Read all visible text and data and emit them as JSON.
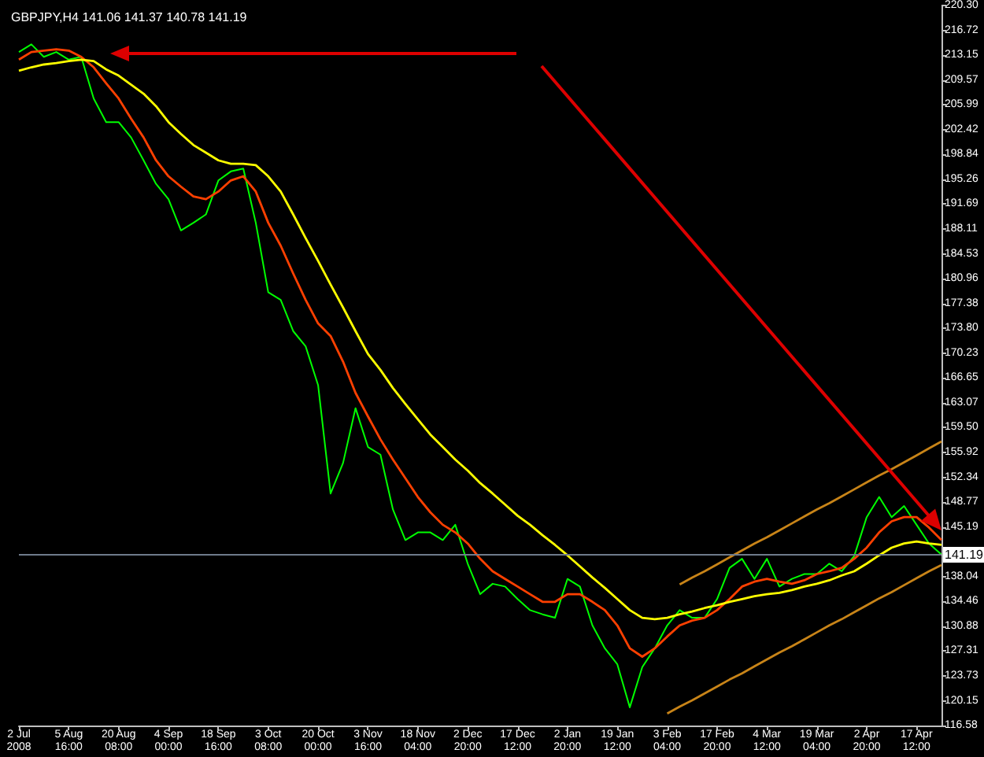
{
  "chart_data": {
    "type": "line",
    "title": "GBPJPY,H4 141.06 141.37 140.78 141.19",
    "categories": [
      "2 Jul 2008",
      null,
      null,
      null,
      "5 Aug 16:00",
      null,
      null,
      null,
      "20 Aug 08:00",
      null,
      null,
      null,
      "4 Sep 00:00",
      null,
      null,
      null,
      "18 Sep 16:00",
      null,
      null,
      null,
      "3 Oct 08:00",
      null,
      null,
      null,
      "20 Oct 00:00",
      null,
      null,
      null,
      "3 Nov 16:00",
      null,
      null,
      null,
      "18 Nov 04:00",
      null,
      null,
      null,
      "2 Dec 20:00",
      null,
      null,
      null,
      "17 Dec 12:00",
      null,
      null,
      null,
      "2 Jan 20:00",
      null,
      null,
      null,
      "19 Jan 12:00",
      null,
      null,
      null,
      "3 Feb 04:00",
      null,
      null,
      null,
      "17 Feb 20:00",
      null,
      null,
      null,
      "4 Mar 12:00",
      null,
      null,
      null,
      "19 Mar 04:00",
      null,
      null,
      null,
      "2 Apr 20:00",
      null,
      null,
      null,
      "17 Apr 12:00",
      null,
      null
    ],
    "series": [
      {
        "color": "#00ff00",
        "values": [
          213.6,
          214.7,
          212.9,
          213.6,
          212.5,
          212.9,
          206.9,
          203.5,
          203.5,
          201.3,
          198.0,
          194.6,
          192.4,
          187.9,
          189.0,
          190.2,
          195.1,
          196.4,
          196.8,
          189.0,
          179.0,
          177.9,
          173.4,
          171.2,
          165.6,
          150.0,
          154.4,
          162.3,
          156.7,
          155.6,
          147.7,
          143.3,
          144.4,
          144.4,
          143.3,
          145.5,
          139.9,
          135.5,
          137.0,
          136.6,
          134.8,
          133.2,
          132.6,
          132.1,
          137.7,
          136.6,
          131.0,
          127.7,
          125.4,
          119.2,
          125.0,
          127.7,
          131.0,
          133.2,
          132.1,
          132.1,
          134.8,
          139.3,
          140.6,
          137.7,
          140.6,
          136.6,
          137.7,
          138.4,
          138.4,
          139.9,
          138.8,
          141.0,
          146.6,
          149.5,
          146.6,
          148.2,
          145.5,
          142.8,
          141.2
        ]
      },
      {
        "color": "#ff4000",
        "values": [
          212.5,
          213.6,
          213.8,
          214.0,
          213.8,
          212.9,
          211.4,
          209.1,
          206.9,
          204.0,
          201.3,
          198.0,
          195.7,
          194.2,
          192.8,
          192.4,
          193.5,
          195.1,
          195.7,
          193.5,
          189.0,
          185.7,
          181.7,
          177.9,
          174.5,
          172.7,
          169.0,
          164.5,
          161.1,
          157.8,
          154.9,
          152.2,
          149.5,
          147.3,
          145.5,
          144.4,
          142.8,
          140.6,
          138.8,
          137.7,
          136.6,
          135.5,
          134.4,
          134.4,
          135.5,
          135.5,
          134.4,
          133.2,
          131.0,
          127.7,
          126.5,
          127.7,
          129.4,
          131.0,
          131.7,
          132.1,
          133.2,
          134.8,
          136.6,
          137.3,
          137.7,
          137.3,
          137.0,
          137.5,
          138.4,
          138.8,
          139.3,
          140.6,
          142.2,
          144.4,
          146.0,
          146.6,
          146.6,
          145.1,
          143.3
        ]
      },
      {
        "color": "#ffff00",
        "values": [
          210.9,
          211.4,
          211.8,
          212.0,
          212.3,
          212.5,
          212.3,
          211.1,
          210.2,
          208.9,
          207.6,
          205.8,
          203.5,
          201.8,
          200.2,
          199.1,
          198.0,
          197.5,
          197.5,
          197.3,
          195.7,
          193.5,
          190.2,
          186.8,
          183.5,
          180.1,
          176.8,
          173.4,
          170.1,
          167.8,
          165.2,
          162.9,
          160.7,
          158.5,
          156.7,
          154.9,
          153.3,
          151.5,
          150.0,
          148.4,
          146.8,
          145.5,
          144.0,
          142.6,
          141.1,
          139.5,
          137.9,
          136.4,
          134.8,
          133.2,
          132.1,
          131.9,
          132.1,
          132.6,
          133.0,
          133.5,
          133.9,
          134.4,
          134.8,
          135.2,
          135.5,
          135.7,
          136.1,
          136.6,
          137.0,
          137.5,
          138.2,
          138.8,
          139.9,
          141.1,
          142.2,
          142.8,
          143.1,
          142.8,
          142.6
        ]
      },
      {
        "color": "#c88418",
        "values": [
          null,
          null,
          null,
          null,
          null,
          null,
          null,
          null,
          null,
          null,
          null,
          null,
          null,
          null,
          null,
          null,
          null,
          null,
          null,
          null,
          null,
          null,
          null,
          null,
          null,
          null,
          null,
          null,
          null,
          null,
          null,
          null,
          null,
          null,
          null,
          null,
          null,
          null,
          null,
          null,
          null,
          null,
          null,
          null,
          null,
          null,
          null,
          null,
          null,
          null,
          null,
          null,
          null,
          136.9,
          137.9,
          138.8,
          139.8,
          140.8,
          141.8,
          142.8,
          143.7,
          144.7,
          145.7,
          146.7,
          147.7,
          148.6,
          149.6,
          150.6,
          151.6,
          152.6,
          153.5,
          154.5,
          155.5,
          156.5,
          157.5
        ]
      },
      {
        "color": "#c88418",
        "values": [
          null,
          null,
          null,
          null,
          null,
          null,
          null,
          null,
          null,
          null,
          null,
          null,
          null,
          null,
          null,
          null,
          null,
          null,
          null,
          null,
          null,
          null,
          null,
          null,
          null,
          null,
          null,
          null,
          null,
          null,
          null,
          null,
          null,
          null,
          null,
          null,
          null,
          null,
          null,
          null,
          null,
          null,
          null,
          null,
          null,
          null,
          null,
          null,
          null,
          null,
          null,
          null,
          118.3,
          119.3,
          120.2,
          121.2,
          122.2,
          123.2,
          124.1,
          125.1,
          126.1,
          127.1,
          128.0,
          129.0,
          130.0,
          131.0,
          131.9,
          132.9,
          133.9,
          134.9,
          135.8,
          136.8,
          137.8,
          138.8,
          139.7
        ]
      }
    ],
    "ylim": [
      116.58,
      220.3
    ],
    "yticks": [
      {
        "value": 220.3,
        "label": "220.30"
      },
      216.72,
      213.15,
      209.57,
      205.99,
      202.42,
      198.84,
      195.26,
      191.69,
      188.11,
      184.53,
      180.96,
      177.38,
      {
        "value": 173.8,
        "label": "173.80"
      },
      170.23,
      166.65,
      163.07,
      {
        "value": 159.5,
        "label": "159.50"
      },
      155.92,
      152.34,
      148.77,
      145.19,
      138.04,
      134.46,
      130.88,
      127.31,
      123.73,
      120.15,
      116.58
    ],
    "ref_lines": [
      {
        "axis": "y",
        "value": 141.19,
        "label": "141.19",
        "color": "#6e7b8b"
      }
    ],
    "grid": false
  }
}
